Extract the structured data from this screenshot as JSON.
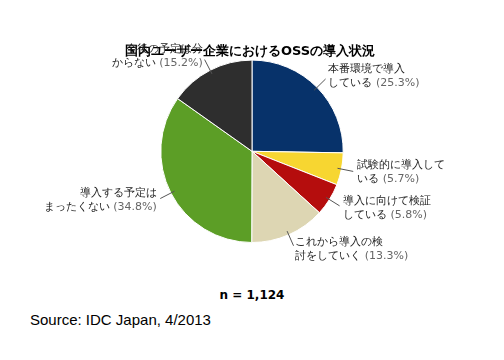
{
  "chart_data": {
    "type": "pie",
    "title": "国内ユーザー企業におけるOSSの導入状況",
    "categories": [
      "本番環境で導入\nしている",
      "試験的に導入して\nいる",
      "導入に向けて検証\nしている",
      "これから導入の検\n討をしていく",
      "導入する予定は\nまったくない",
      "今後の予定は分\nからない"
    ],
    "values": [
      25.3,
      5.7,
      5.8,
      13.3,
      34.8,
      15.2
    ],
    "value_labels": [
      "(25.3%)",
      "(5.7%)",
      "(5.8%)",
      "(13.3%)",
      "(34.8%)",
      "(15.2%)"
    ],
    "colors": [
      "#07326a",
      "#f7d631",
      "#b50d0d",
      "#ddd6b3",
      "#5c9e26",
      "#2e2e2e"
    ],
    "data_labels": true,
    "annotations": [
      "n = 1,124",
      "Source: IDC Japan, 4/2013"
    ]
  }
}
